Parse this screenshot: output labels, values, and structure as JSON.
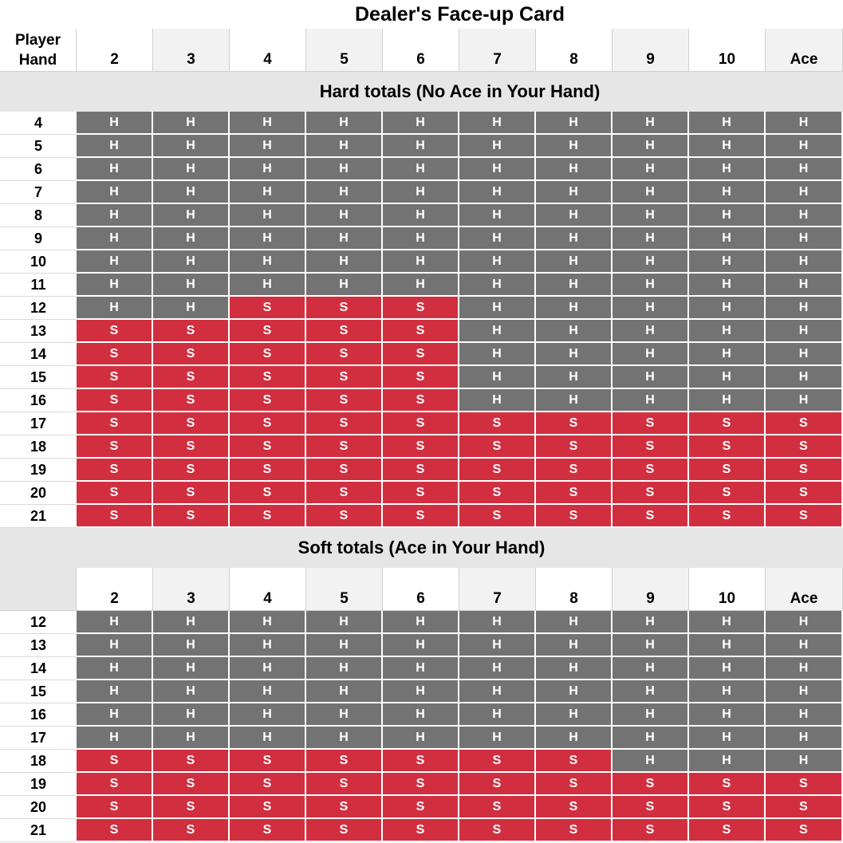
{
  "title": "Dealer's Face-up Card",
  "player_hand_label_line1": "Player",
  "player_hand_label_line2": "Hand",
  "dealer_cards": [
    "2",
    "3",
    "4",
    "5",
    "6",
    "7",
    "8",
    "9",
    "10",
    "Ace"
  ],
  "sections": [
    {
      "title": "Hard totals (No Ace in Your Hand)",
      "rows": [
        {
          "hand": "4",
          "actions": [
            "H",
            "H",
            "H",
            "H",
            "H",
            "H",
            "H",
            "H",
            "H",
            "H"
          ]
        },
        {
          "hand": "5",
          "actions": [
            "H",
            "H",
            "H",
            "H",
            "H",
            "H",
            "H",
            "H",
            "H",
            "H"
          ]
        },
        {
          "hand": "6",
          "actions": [
            "H",
            "H",
            "H",
            "H",
            "H",
            "H",
            "H",
            "H",
            "H",
            "H"
          ]
        },
        {
          "hand": "7",
          "actions": [
            "H",
            "H",
            "H",
            "H",
            "H",
            "H",
            "H",
            "H",
            "H",
            "H"
          ]
        },
        {
          "hand": "8",
          "actions": [
            "H",
            "H",
            "H",
            "H",
            "H",
            "H",
            "H",
            "H",
            "H",
            "H"
          ]
        },
        {
          "hand": "9",
          "actions": [
            "H",
            "H",
            "H",
            "H",
            "H",
            "H",
            "H",
            "H",
            "H",
            "H"
          ]
        },
        {
          "hand": "10",
          "actions": [
            "H",
            "H",
            "H",
            "H",
            "H",
            "H",
            "H",
            "H",
            "H",
            "H"
          ]
        },
        {
          "hand": "11",
          "actions": [
            "H",
            "H",
            "H",
            "H",
            "H",
            "H",
            "H",
            "H",
            "H",
            "H"
          ]
        },
        {
          "hand": "12",
          "actions": [
            "H",
            "H",
            "S",
            "S",
            "S",
            "H",
            "H",
            "H",
            "H",
            "H"
          ]
        },
        {
          "hand": "13",
          "actions": [
            "S",
            "S",
            "S",
            "S",
            "S",
            "H",
            "H",
            "H",
            "H",
            "H"
          ]
        },
        {
          "hand": "14",
          "actions": [
            "S",
            "S",
            "S",
            "S",
            "S",
            "H",
            "H",
            "H",
            "H",
            "H"
          ]
        },
        {
          "hand": "15",
          "actions": [
            "S",
            "S",
            "S",
            "S",
            "S",
            "H",
            "H",
            "H",
            "H",
            "H"
          ]
        },
        {
          "hand": "16",
          "actions": [
            "S",
            "S",
            "S",
            "S",
            "S",
            "H",
            "H",
            "H",
            "H",
            "H"
          ]
        },
        {
          "hand": "17",
          "actions": [
            "S",
            "S",
            "S",
            "S",
            "S",
            "S",
            "S",
            "S",
            "S",
            "S"
          ]
        },
        {
          "hand": "18",
          "actions": [
            "S",
            "S",
            "S",
            "S",
            "S",
            "S",
            "S",
            "S",
            "S",
            "S"
          ]
        },
        {
          "hand": "19",
          "actions": [
            "S",
            "S",
            "S",
            "S",
            "S",
            "S",
            "S",
            "S",
            "S",
            "S"
          ]
        },
        {
          "hand": "20",
          "actions": [
            "S",
            "S",
            "S",
            "S",
            "S",
            "S",
            "S",
            "S",
            "S",
            "S"
          ]
        },
        {
          "hand": "21",
          "actions": [
            "S",
            "S",
            "S",
            "S",
            "S",
            "S",
            "S",
            "S",
            "S",
            "S"
          ]
        }
      ]
    },
    {
      "title": "Soft totals (Ace in Your Hand)",
      "rows": [
        {
          "hand": "12",
          "actions": [
            "H",
            "H",
            "H",
            "H",
            "H",
            "H",
            "H",
            "H",
            "H",
            "H"
          ]
        },
        {
          "hand": "13",
          "actions": [
            "H",
            "H",
            "H",
            "H",
            "H",
            "H",
            "H",
            "H",
            "H",
            "H"
          ]
        },
        {
          "hand": "14",
          "actions": [
            "H",
            "H",
            "H",
            "H",
            "H",
            "H",
            "H",
            "H",
            "H",
            "H"
          ]
        },
        {
          "hand": "15",
          "actions": [
            "H",
            "H",
            "H",
            "H",
            "H",
            "H",
            "H",
            "H",
            "H",
            "H"
          ]
        },
        {
          "hand": "16",
          "actions": [
            "H",
            "H",
            "H",
            "H",
            "H",
            "H",
            "H",
            "H",
            "H",
            "H"
          ]
        },
        {
          "hand": "17",
          "actions": [
            "H",
            "H",
            "H",
            "H",
            "H",
            "H",
            "H",
            "H",
            "H",
            "H"
          ]
        },
        {
          "hand": "18",
          "actions": [
            "S",
            "S",
            "S",
            "S",
            "S",
            "S",
            "S",
            "H",
            "H",
            "H"
          ]
        },
        {
          "hand": "19",
          "actions": [
            "S",
            "S",
            "S",
            "S",
            "S",
            "S",
            "S",
            "S",
            "S",
            "S"
          ]
        },
        {
          "hand": "20",
          "actions": [
            "S",
            "S",
            "S",
            "S",
            "S",
            "S",
            "S",
            "S",
            "S",
            "S"
          ]
        },
        {
          "hand": "21",
          "actions": [
            "S",
            "S",
            "S",
            "S",
            "S",
            "S",
            "S",
            "S",
            "S",
            "S"
          ]
        }
      ]
    }
  ],
  "colors": {
    "hit": "#737373",
    "stand": "#d12f40"
  }
}
